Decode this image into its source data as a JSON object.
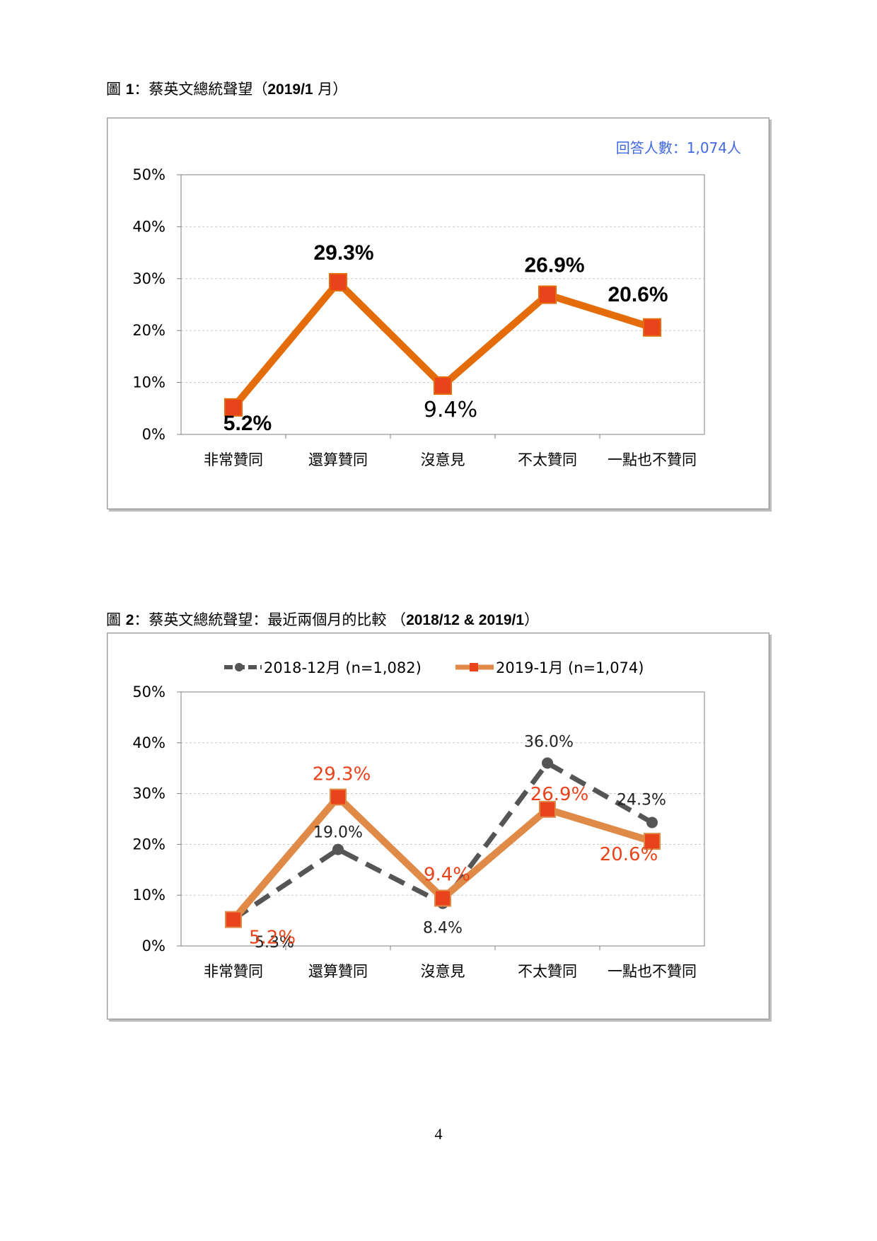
{
  "figure1": {
    "caption_prefix": "圖 ",
    "caption_num": "1",
    "caption_sep": "：",
    "caption_text": "蔡英文總統聲望（",
    "caption_date": "2019/1",
    "caption_suffix": " 月）",
    "respondents_note": "回答人數：1,074人",
    "chart_data": {
      "type": "line",
      "categories": [
        "非常贊同",
        "還算贊同",
        "沒意見",
        "不太贊同",
        "一點也不贊同"
      ],
      "y_ticks": [
        "0%",
        "10%",
        "20%",
        "30%",
        "40%",
        "50%"
      ],
      "ylim": [
        0,
        50
      ],
      "grid": true,
      "series": [
        {
          "values": [
            5.2,
            29.3,
            9.4,
            26.9,
            20.6
          ],
          "labels": [
            "5.2%",
            "29.3%",
            "9.4%",
            "26.9%",
            "20.6%"
          ],
          "color": "#E46C0A",
          "marker_color": "#E8431A",
          "label_color": "#000000"
        }
      ]
    }
  },
  "figure2": {
    "caption_prefix": "圖 ",
    "caption_num": "2",
    "caption_sep": "：",
    "caption_text": "蔡英文總統聲望：最近兩個月的比較 （",
    "caption_date": "2018/12 & 2019/1",
    "caption_suffix": "）",
    "chart_data": {
      "type": "line",
      "categories": [
        "非常贊同",
        "還算贊同",
        "沒意見",
        "不太贊同",
        "一點也不贊同"
      ],
      "y_ticks": [
        "0%",
        "10%",
        "20%",
        "30%",
        "40%",
        "50%"
      ],
      "ylim": [
        0,
        50
      ],
      "grid": true,
      "legend_position": "top",
      "series": [
        {
          "name": "2018-12月 (n=1,082)",
          "values": [
            5.3,
            19.0,
            8.4,
            36.0,
            24.3
          ],
          "labels": [
            "5.3%",
            "19.0%",
            "8.4%",
            "36.0%",
            "24.3%"
          ],
          "color": "#555555",
          "style": "dashed",
          "marker": "circle",
          "label_color": "#222222"
        },
        {
          "name": "2019-1月 (n=1,074)",
          "values": [
            5.2,
            29.3,
            9.4,
            26.9,
            20.6
          ],
          "labels": [
            "5.2%",
            "29.3%",
            "9.4%",
            "26.9%",
            "20.6%"
          ],
          "color": "#E08A48",
          "style": "solid",
          "marker": "square",
          "marker_color": "#E8431A",
          "label_color": "#E8431A"
        }
      ]
    }
  },
  "page_number": "4"
}
